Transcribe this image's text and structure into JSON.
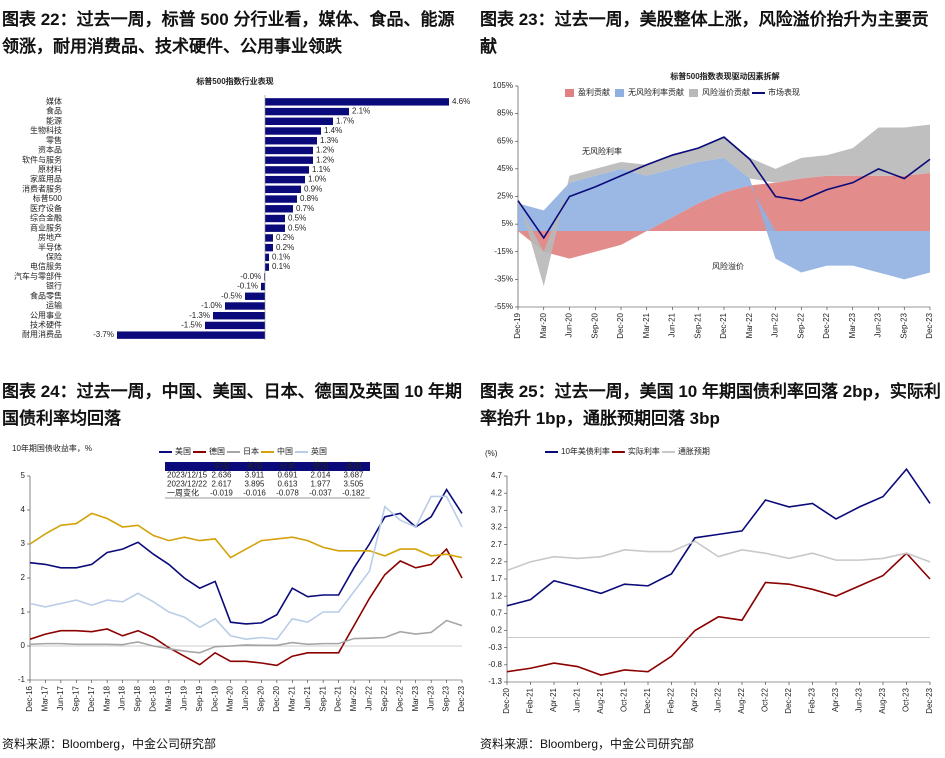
{
  "chart_data": [
    {
      "type": "barh",
      "title": "图表 22：过去一周，标普 500 分行业看，媒体、食品、能源领涨，耐用消费品、技术硬件、公用事业领跌",
      "subtitle": "标普500指数行业表现",
      "color": "#0a0a7a",
      "negative_label_color": "#e00000",
      "categories": [
        "媒体",
        "食品",
        "能源",
        "生物科技",
        "零售",
        "资本品",
        "软件与服务",
        "原材料",
        "家庭用品",
        "消费者服务",
        "标普500",
        "医疗设备",
        "综合金融",
        "商业服务",
        "房地产",
        "半导体",
        "保险",
        "电信服务",
        "汽车与零部件",
        "银行",
        "食品零售",
        "运输",
        "公用事业",
        "技术硬件",
        "耐用消费品"
      ],
      "values": [
        4.6,
        2.1,
        1.7,
        1.4,
        1.3,
        1.2,
        1.2,
        1.1,
        1.0,
        0.9,
        0.8,
        0.7,
        0.5,
        0.5,
        0.2,
        0.2,
        0.1,
        0.1,
        -0.02,
        -0.1,
        -0.5,
        -1.0,
        -1.3,
        -1.5,
        -3.7
      ],
      "value_labels": [
        "4.6%",
        "2.1%",
        "1.7%",
        "1.4%",
        "1.3%",
        "1.2%",
        "1.2%",
        "1.1%",
        "1.0%",
        "0.9%",
        "0.8%",
        "0.7%",
        "0.5%",
        "0.5%",
        "0.2%",
        "0.2%",
        "0.1%",
        "0.1%",
        "-0.0%",
        "-0.1%",
        "-0.5%",
        "-1.0%",
        "-1.3%",
        "-1.5%",
        "-3.7%"
      ]
    },
    {
      "type": "line",
      "title": "图表 23：过去一周，美股整体上涨，风险溢价抬升为主要贡献",
      "subtitle": "标普500指数表现驱动因素拆解",
      "categories": [
        "Dec-19",
        "Mar-20",
        "Jun-20",
        "Sep-20",
        "Dec-20",
        "Mar-21",
        "Jun-21",
        "Sep-21",
        "Dec-21",
        "Mar-22",
        "Jun-22",
        "Sep-22",
        "Dec-22",
        "Mar-23",
        "Jun-23",
        "Sep-23",
        "Dec-23"
      ],
      "series": [
        {
          "name": "盈利贡献",
          "type": "area",
          "color": "#e08080",
          "values": [
            0,
            -15,
            -20,
            -15,
            -10,
            0,
            10,
            20,
            28,
            33,
            35,
            38,
            40,
            40,
            40,
            40,
            42
          ]
        },
        {
          "name": "无风险利率贡献",
          "type": "area",
          "color": "#8fb0e0",
          "values": [
            20,
            15,
            35,
            40,
            45,
            40,
            35,
            30,
            25,
            5,
            -20,
            -30,
            -25,
            -25,
            -30,
            -35,
            -30
          ]
        },
        {
          "name": "风险溢价贡献",
          "type": "area",
          "color": "#b8b8b8",
          "values": [
            5,
            -25,
            5,
            5,
            5,
            8,
            10,
            10,
            15,
            15,
            10,
            15,
            15,
            20,
            35,
            35,
            35
          ]
        },
        {
          "name": "市场表现",
          "type": "line",
          "color": "#0a0a7a",
          "values": [
            22,
            -5,
            25,
            32,
            40,
            48,
            55,
            60,
            68,
            52,
            25,
            22,
            30,
            35,
            45,
            38,
            52
          ]
        }
      ],
      "annotations": [
        "无风险利率",
        "风险溢价"
      ],
      "ylim": [
        -55,
        105
      ],
      "yticks": [
        {
          "value": 105,
          "label": "105%"
        },
        {
          "value": 85,
          "label": "85%"
        },
        {
          "value": 65,
          "label": "65%"
        },
        {
          "value": 45,
          "label": "45%"
        },
        {
          "value": 25,
          "label": "25%"
        },
        {
          "value": 5,
          "label": "5%"
        },
        {
          "value": -15,
          "label": "-15%"
        },
        {
          "value": -35,
          "label": "-35%"
        },
        {
          "value": -55,
          "label": "-55%"
        }
      ]
    },
    {
      "type": "line",
      "title": "图表 24：过去一周，中国、美国、日本、德国及英国 10 年期国债利率均回落",
      "ylabel": "10年期国债收益率，%",
      "source": "资料来源：Bloomberg，中金公司研究部",
      "categories": [
        "Dec-16",
        "Mar-17",
        "Jun-17",
        "Sep-17",
        "Dec-17",
        "Mar-18",
        "Jun-18",
        "Sep-18",
        "Dec-18",
        "Mar-19",
        "Jun-19",
        "Sep-19",
        "Dec-19",
        "Mar-20",
        "Jun-20",
        "Sep-20",
        "Dec-20",
        "Mar-21",
        "Jun-21",
        "Sep-21",
        "Dec-21",
        "Mar-22",
        "Jun-22",
        "Sep-22",
        "Dec-22",
        "Mar-23",
        "Jun-23",
        "Sep-23",
        "Dec-23"
      ],
      "series": [
        {
          "name": "美国",
          "type": "line",
          "color": "#0a0a7a",
          "values": [
            2.45,
            2.4,
            2.3,
            2.3,
            2.4,
            2.75,
            2.85,
            3.05,
            2.7,
            2.4,
            2.0,
            1.7,
            1.9,
            0.7,
            0.65,
            0.68,
            0.92,
            1.7,
            1.45,
            1.5,
            1.5,
            2.3,
            3.0,
            3.8,
            3.9,
            3.5,
            3.8,
            4.6,
            3.9
          ]
        },
        {
          "name": "德国",
          "type": "line",
          "color": "#8b0000",
          "values": [
            0.2,
            0.35,
            0.45,
            0.45,
            0.42,
            0.5,
            0.3,
            0.45,
            0.25,
            -0.05,
            -0.3,
            -0.55,
            -0.2,
            -0.45,
            -0.45,
            -0.5,
            -0.57,
            -0.3,
            -0.2,
            -0.2,
            -0.2,
            0.6,
            1.4,
            2.1,
            2.5,
            2.3,
            2.4,
            2.85,
            2.0
          ]
        },
        {
          "name": "日本",
          "type": "line",
          "color": "#a6a6a6",
          "values": [
            0.05,
            0.07,
            0.07,
            0.05,
            0.05,
            0.05,
            0.04,
            0.12,
            0.0,
            -0.08,
            -0.15,
            -0.2,
            -0.02,
            0.0,
            0.03,
            0.02,
            0.02,
            0.1,
            0.05,
            0.07,
            0.07,
            0.22,
            0.23,
            0.25,
            0.42,
            0.35,
            0.4,
            0.75,
            0.6
          ]
        },
        {
          "name": "中国",
          "type": "line",
          "color": "#d4a20a",
          "values": [
            3.0,
            3.3,
            3.55,
            3.6,
            3.9,
            3.75,
            3.5,
            3.55,
            3.25,
            3.1,
            3.2,
            3.1,
            3.15,
            2.6,
            2.85,
            3.1,
            3.15,
            3.2,
            3.1,
            2.9,
            2.8,
            2.8,
            2.8,
            2.65,
            2.85,
            2.85,
            2.65,
            2.7,
            2.6
          ]
        },
        {
          "name": "英国",
          "type": "line",
          "color": "#b9cde8",
          "values": [
            1.25,
            1.15,
            1.25,
            1.35,
            1.2,
            1.35,
            1.3,
            1.55,
            1.3,
            1.0,
            0.85,
            0.55,
            0.8,
            0.3,
            0.2,
            0.25,
            0.2,
            0.8,
            0.7,
            1.0,
            1.0,
            1.6,
            2.2,
            4.1,
            3.7,
            3.5,
            4.4,
            4.4,
            3.5
          ]
        }
      ],
      "ylim": [
        -1,
        5
      ],
      "yticks": [
        -1,
        0,
        1,
        2,
        3,
        4,
        5
      ],
      "table": {
        "columns": [
          "中国",
          "美国",
          "日本",
          "德国",
          "英国"
        ],
        "rows": [
          {
            "label": "2023/12/15",
            "values": [
              2.636,
              3.911,
              0.691,
              2.014,
              3.687
            ]
          },
          {
            "label": "2023/12/22",
            "values": [
              2.617,
              3.895,
              0.613,
              1.977,
              3.505
            ]
          },
          {
            "label": "一周变化",
            "values": [
              -0.019,
              -0.016,
              -0.078,
              -0.037,
              -0.182
            ]
          }
        ]
      }
    },
    {
      "type": "line",
      "title": "图表 25：过去一周，美国 10 年期国债利率回落 2bp，实际利率抬升 1bp，通胀预期回落 3bp",
      "ylabel": "(%)",
      "source": "资料来源：Bloomberg，中金公司研究部",
      "categories": [
        "Dec-20",
        "Feb-21",
        "Apr-21",
        "Jun-21",
        "Aug-21",
        "Oct-21",
        "Dec-21",
        "Feb-22",
        "Apr-22",
        "Jun-22",
        "Aug-22",
        "Oct-22",
        "Dec-22",
        "Feb-23",
        "Apr-23",
        "Jun-23",
        "Aug-23",
        "Oct-23",
        "Dec-23"
      ],
      "series": [
        {
          "name": "10年美债利率",
          "type": "line",
          "color": "#0a0a7a",
          "values": [
            0.92,
            1.1,
            1.65,
            1.47,
            1.28,
            1.55,
            1.5,
            1.85,
            2.9,
            3.0,
            3.1,
            4.0,
            3.8,
            3.9,
            3.45,
            3.8,
            4.1,
            4.9,
            3.9
          ]
        },
        {
          "name": "实际利率",
          "type": "line",
          "color": "#8b0000",
          "values": [
            -1.0,
            -0.9,
            -0.75,
            -0.85,
            -1.1,
            -0.95,
            -1.0,
            -0.55,
            0.2,
            0.6,
            0.5,
            1.6,
            1.55,
            1.4,
            1.2,
            1.5,
            1.8,
            2.45,
            1.7
          ]
        },
        {
          "name": "通胀预期",
          "type": "line",
          "color": "#c8c8c8",
          "values": [
            1.95,
            2.2,
            2.35,
            2.3,
            2.35,
            2.55,
            2.5,
            2.5,
            2.8,
            2.35,
            2.55,
            2.45,
            2.3,
            2.45,
            2.25,
            2.25,
            2.3,
            2.45,
            2.2
          ]
        }
      ],
      "ylim": [
        -1.3,
        4.7
      ],
      "yticks": [
        -1.3,
        -0.8,
        -0.3,
        0.2,
        0.7,
        1.2,
        1.7,
        2.2,
        2.7,
        3.2,
        3.7,
        4.2,
        4.7
      ]
    }
  ]
}
